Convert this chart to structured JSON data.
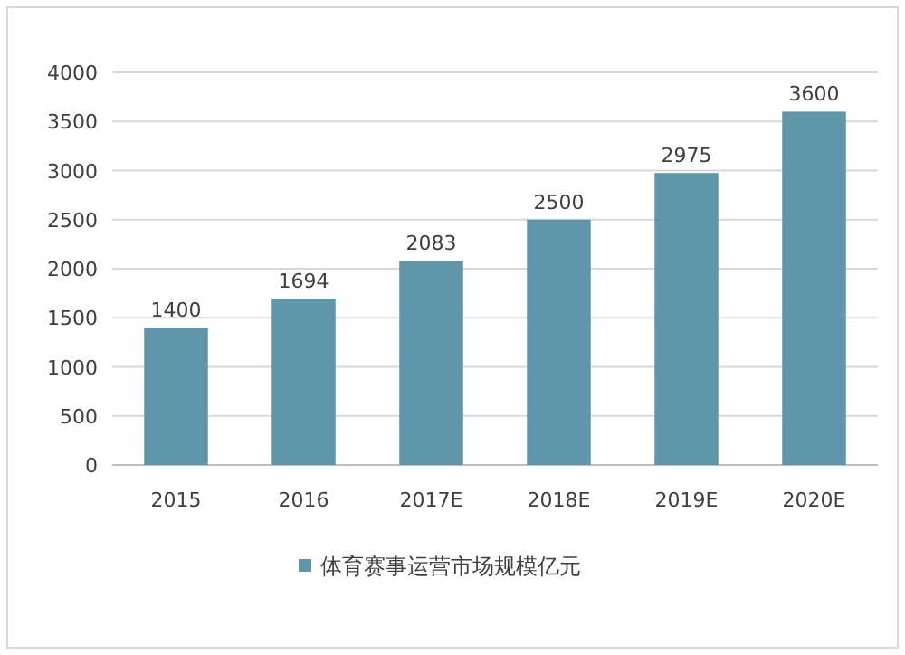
{
  "chart_data": {
    "type": "bar",
    "categories": [
      "2015",
      "2016",
      "2017E",
      "2018E",
      "2019E",
      "2020E"
    ],
    "series": [
      {
        "name": "体育赛事运营市场规模亿元",
        "color": "#5f96a9",
        "values": [
          1400,
          1694,
          2083,
          2500,
          2975,
          3600
        ]
      }
    ],
    "ylim": [
      0,
      4000
    ],
    "yticks": [
      0,
      500,
      1000,
      1500,
      2000,
      2500,
      3000,
      3500,
      4000
    ],
    "grid": "y",
    "data_labels": true,
    "legend": "bottom"
  }
}
